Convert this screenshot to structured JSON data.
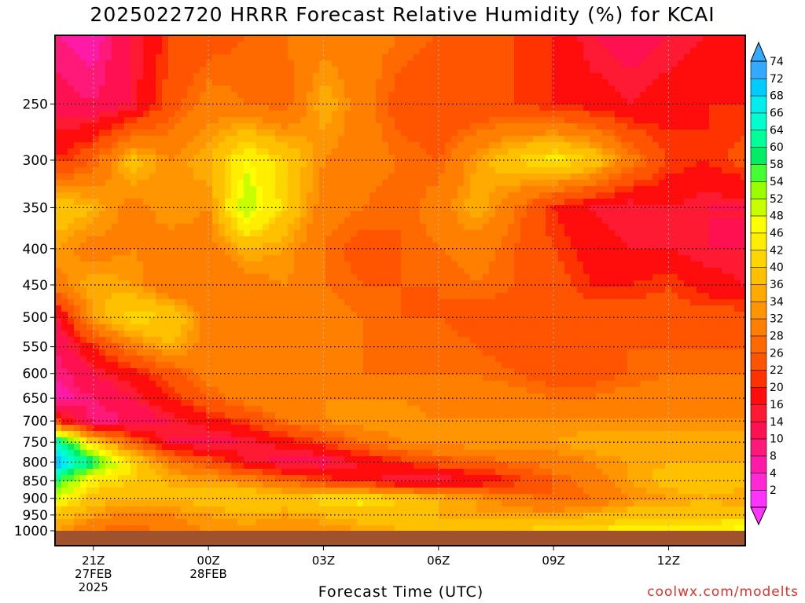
{
  "chart_data": {
    "type": "heatmap",
    "title": "2025022720 HRRR Forecast Relative Humidity (%) for KCAI",
    "xlabel": "Forecast Time (UTC)",
    "credit": "coolwx.com/modelts",
    "y_pressure_levels": [
      1000,
      950,
      900,
      850,
      800,
      750,
      700,
      650,
      600,
      550,
      500,
      450,
      400,
      350,
      300,
      250
    ],
    "y_range_hPa": [
      1000,
      200
    ],
    "x_hours_from_init": [
      0,
      1,
      2,
      3,
      4,
      5,
      6,
      7,
      8,
      9,
      10,
      11,
      12,
      13,
      14,
      15,
      16,
      17,
      18
    ],
    "x_ticks": [
      {
        "label": "21Z",
        "sub1": "27FEB",
        "sub2": "2025",
        "hour": 1
      },
      {
        "label": "00Z",
        "sub1": "28FEB",
        "sub2": "",
        "hour": 4
      },
      {
        "label": "03Z",
        "sub1": "",
        "sub2": "",
        "hour": 7
      },
      {
        "label": "06Z",
        "sub1": "",
        "sub2": "",
        "hour": 10
      },
      {
        "label": "09Z",
        "sub1": "",
        "sub2": "",
        "hour": 13
      },
      {
        "label": "12Z",
        "sub1": "",
        "sub2": "",
        "hour": 16
      }
    ],
    "colorbar_levels": [
      2,
      4,
      8,
      10,
      14,
      16,
      20,
      22,
      26,
      28,
      32,
      34,
      36,
      40,
      42,
      46,
      48,
      52,
      54,
      58,
      60,
      64,
      66,
      68,
      72,
      74
    ],
    "colorbar_colors": [
      "#ff33ff",
      "#ff2ad4",
      "#ff1aa8",
      "#ff1a7a",
      "#ff1050",
      "#ff1a33",
      "#ff0d0d",
      "#ff3300",
      "#ff5500",
      "#ff6a00",
      "#ff8000",
      "#ff9500",
      "#ffaa00",
      "#ffc000",
      "#ffd500",
      "#ffee00",
      "#ffff00",
      "#c8ff00",
      "#99ff00",
      "#44ff33",
      "#00ee66",
      "#00ff99",
      "#00ffcc",
      "#00eeee",
      "#00ccff",
      "#33aaff"
    ],
    "rh_grid_rows_top_to_bottom": [
      {
        "level": 200,
        "values": [
          8,
          6,
          14,
          22,
          24,
          26,
          28,
          30,
          30,
          28,
          26,
          24,
          22,
          20,
          14,
          12,
          14,
          16,
          18
        ]
      },
      {
        "level": 250,
        "values": [
          12,
          10,
          14,
          24,
          30,
          28,
          26,
          36,
          30,
          24,
          22,
          22,
          22,
          20,
          18,
          16,
          18,
          20,
          20
        ]
      },
      {
        "level": 300,
        "values": [
          20,
          26,
          38,
          32,
          36,
          46,
          40,
          32,
          30,
          28,
          26,
          34,
          40,
          44,
          40,
          30,
          22,
          20,
          24
        ]
      },
      {
        "level": 350,
        "values": [
          40,
          36,
          30,
          34,
          32,
          52,
          40,
          30,
          28,
          26,
          30,
          36,
          28,
          20,
          16,
          14,
          16,
          14,
          14
        ]
      },
      {
        "level": 400,
        "values": [
          34,
          30,
          32,
          30,
          30,
          36,
          34,
          28,
          24,
          26,
          28,
          30,
          26,
          22,
          18,
          16,
          16,
          14,
          14
        ]
      },
      {
        "level": 450,
        "values": [
          30,
          36,
          34,
          28,
          28,
          30,
          32,
          28,
          26,
          26,
          26,
          28,
          26,
          24,
          20,
          20,
          22,
          18,
          16
        ]
      },
      {
        "level": 500,
        "values": [
          14,
          34,
          42,
          40,
          30,
          28,
          30,
          30,
          28,
          26,
          26,
          24,
          24,
          24,
          24,
          24,
          24,
          24,
          24
        ]
      },
      {
        "level": 550,
        "values": [
          10,
          20,
          30,
          36,
          30,
          28,
          30,
          30,
          28,
          28,
          28,
          26,
          24,
          24,
          24,
          26,
          26,
          26,
          26
        ]
      },
      {
        "level": 600,
        "values": [
          8,
          14,
          18,
          24,
          30,
          30,
          30,
          30,
          28,
          28,
          28,
          28,
          26,
          24,
          24,
          26,
          28,
          28,
          28
        ]
      },
      {
        "level": 650,
        "values": [
          6,
          10,
          14,
          20,
          26,
          30,
          32,
          32,
          32,
          32,
          30,
          30,
          30,
          28,
          28,
          30,
          30,
          30,
          30
        ]
      },
      {
        "level": 700,
        "values": [
          22,
          8,
          10,
          14,
          18,
          22,
          28,
          32,
          34,
          34,
          32,
          32,
          32,
          32,
          32,
          32,
          32,
          32,
          32
        ]
      },
      {
        "level": 750,
        "values": [
          66,
          40,
          26,
          14,
          12,
          14,
          18,
          22,
          28,
          32,
          34,
          34,
          34,
          34,
          36,
          36,
          36,
          36,
          36
        ]
      },
      {
        "level": 800,
        "values": [
          72,
          60,
          42,
          30,
          24,
          16,
          12,
          12,
          16,
          20,
          24,
          26,
          28,
          30,
          32,
          34,
          36,
          36,
          36
        ]
      },
      {
        "level": 850,
        "values": [
          60,
          44,
          40,
          36,
          34,
          32,
          26,
          22,
          18,
          14,
          14,
          16,
          20,
          26,
          30,
          34,
          38,
          38,
          38
        ]
      },
      {
        "level": 900,
        "values": [
          48,
          38,
          36,
          36,
          38,
          40,
          40,
          42,
          44,
          40,
          36,
          34,
          30,
          26,
          28,
          32,
          34,
          36,
          34
        ]
      },
      {
        "level": 950,
        "values": [
          38,
          34,
          30,
          32,
          34,
          36,
          34,
          36,
          38,
          38,
          36,
          34,
          34,
          34,
          36,
          38,
          38,
          38,
          38
        ]
      },
      {
        "level": 1000,
        "values": [
          34,
          28,
          26,
          30,
          32,
          32,
          32,
          32,
          34,
          36,
          38,
          40,
          40,
          42,
          42,
          44,
          44,
          46,
          48
        ]
      }
    ],
    "ground_color": "#a0522d",
    "grid": true
  }
}
